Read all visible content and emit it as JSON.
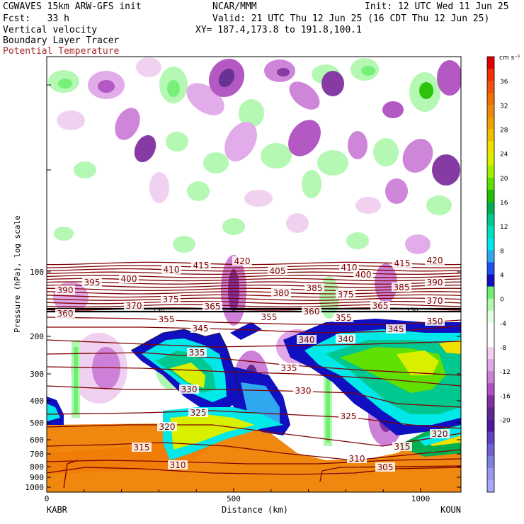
{
  "header": {
    "model": "CGWAVES 15km ARW-GFS init",
    "org": "NCAR/MMM",
    "init": "Init: 12 UTC Wed 11 Jun 25",
    "fcst": "Fcst:   33 h",
    "valid": "Valid: 21 UTC Thu 12 Jun 25 (16 CDT Thu 12 Jun 25)",
    "field1": "Vertical velocity",
    "xy": "XY= 187.4,173.8 to 191.8,100.1",
    "field2": "Boundary Layer Tracer",
    "field3": "Potential Temperature"
  },
  "colors": {
    "theta_contour": "#800000",
    "field3_text": "#a52a2a",
    "tracer_contour": "#1a1a1a"
  },
  "axes": {
    "ylabel": "Pressure (hPa), log scale",
    "xlabel": "Distance (km)",
    "yticks": [
      "100",
      "200",
      "300",
      "400",
      "500",
      "600",
      "700",
      "800",
      "900",
      "1000"
    ],
    "xticks": [
      "0",
      "500",
      "1000"
    ],
    "left_station": "KABR",
    "right_station": "KOUN"
  },
  "colorbar": {
    "units": "cm s⁻¹",
    "labels": [
      "36",
      "32",
      "28",
      "24",
      "20",
      "16",
      "12",
      "8",
      "4",
      "0",
      "-4",
      "-8",
      "-12",
      "-16",
      "-20"
    ],
    "colors": [
      "#e00000",
      "#f03000",
      "#f05010",
      "#f07000",
      "#f08810",
      "#f0a000",
      "#f0c000",
      "#f0e000",
      "#d8f000",
      "#a0f000",
      "#60e000",
      "#20c000",
      "#00b050",
      "#00c890",
      "#00e0c0",
      "#00e8e8",
      "#30a8f0",
      "#2050f0",
      "#1010c0",
      "#70f070",
      "#b0f8b0",
      "#e0ffe0",
      "#ffffff",
      "#ffffff",
      "#f0d0f0",
      "#e0a8e8",
      "#cc80d8",
      "#b050c0",
      "#8030a0",
      "#602890",
      "#5018a0",
      "#6040c0",
      "#7060d0",
      "#8080e0",
      "#9898f0",
      "#a8a8f8"
    ]
  },
  "theta_labels": [
    {
      "t": "420"
    },
    {
      "t": "420"
    },
    {
      "t": "415"
    },
    {
      "t": "415"
    },
    {
      "t": "410"
    },
    {
      "t": "410"
    },
    {
      "t": "405"
    },
    {
      "t": "400"
    },
    {
      "t": "400"
    },
    {
      "t": "395"
    },
    {
      "t": "390"
    },
    {
      "t": "390"
    },
    {
      "t": "385"
    },
    {
      "t": "385"
    },
    {
      "t": "380"
    },
    {
      "t": "375"
    },
    {
      "t": "375"
    },
    {
      "t": "370"
    },
    {
      "t": "370"
    },
    {
      "t": "365"
    },
    {
      "t": "365"
    },
    {
      "t": "360"
    },
    {
      "t": "360"
    },
    {
      "t": "355"
    },
    {
      "t": "355"
    },
    {
      "t": "355"
    },
    {
      "t": "350"
    },
    {
      "t": "345"
    },
    {
      "t": "345"
    },
    {
      "t": "340"
    },
    {
      "t": "340"
    },
    {
      "t": "335"
    },
    {
      "t": "335"
    },
    {
      "t": "330"
    },
    {
      "t": "330"
    },
    {
      "t": "325"
    },
    {
      "t": "325"
    },
    {
      "t": "320"
    },
    {
      "t": "320"
    },
    {
      "t": "315"
    },
    {
      "t": "315"
    },
    {
      "t": "310"
    },
    {
      "t": "310"
    },
    {
      "t": "305"
    }
  ],
  "tracer_labels": [
    "150",
    "150"
  ]
}
